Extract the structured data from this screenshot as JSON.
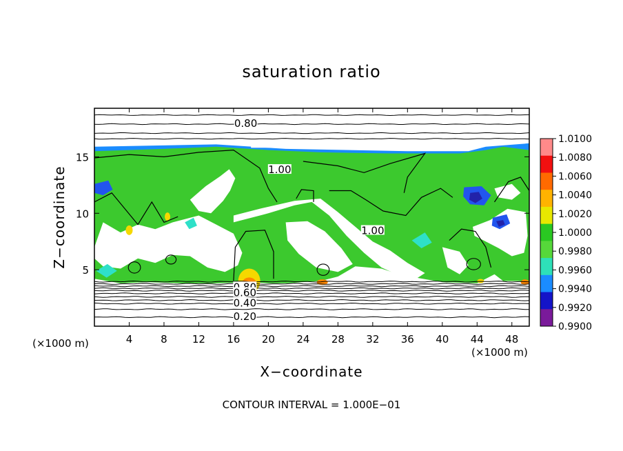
{
  "chart_data": {
    "type": "heatmap",
    "title": "saturation ratio",
    "xlabel": "X−coordinate",
    "ylabel": "Z−coordinate",
    "x_unit_left": "(×1000 m)",
    "x_unit_right": "(×1000 m)",
    "xlim": [
      0,
      50
    ],
    "ylim": [
      0,
      19.3
    ],
    "x_ticks": [
      4,
      8,
      12,
      16,
      20,
      24,
      28,
      32,
      36,
      40,
      44,
      48
    ],
    "y_ticks": [
      5,
      10,
      15
    ],
    "footer": "CONTOUR INTERVAL = 1.000E−01",
    "contour_labels": [
      {
        "text": "0.80",
        "x": 17.4,
        "y": 17.9
      },
      {
        "text": "1.00",
        "x": 21.3,
        "y": 13.8
      },
      {
        "text": "1.00",
        "x": 32.0,
        "y": 8.4
      },
      {
        "text": "0.80",
        "x": 17.3,
        "y": 3.4
      },
      {
        "text": "0.60",
        "x": 17.3,
        "y": 2.9
      },
      {
        "text": "0.40",
        "x": 17.3,
        "y": 2.0
      },
      {
        "text": "0.20",
        "x": 17.3,
        "y": 0.8
      }
    ],
    "colorbar": {
      "ticks": [
        "1.0100",
        "1.0080",
        "1.0060",
        "1.0040",
        "1.0020",
        "1.0000",
        "0.9980",
        "0.9960",
        "0.9940",
        "0.9920",
        "0.9900"
      ],
      "colors": [
        "#ff8a8a",
        "#f21010",
        "#ff6a00",
        "#ffb300",
        "#e8e800",
        "#2ac822",
        "#56d83a",
        "#2ee0b8",
        "#1a8cff",
        "#1414c8",
        "#7a1a9a"
      ]
    },
    "field_colors": {
      "background": "#ffffff",
      "main": "#3cc92e",
      "top_band": "#1a8cff",
      "blue_patch": "#2255ee",
      "dark_patch": "#2222aa",
      "cyan": "#2ee0c8",
      "yellow": "#f5d800",
      "orange": "#ff8800",
      "red": "#e81010"
    }
  }
}
